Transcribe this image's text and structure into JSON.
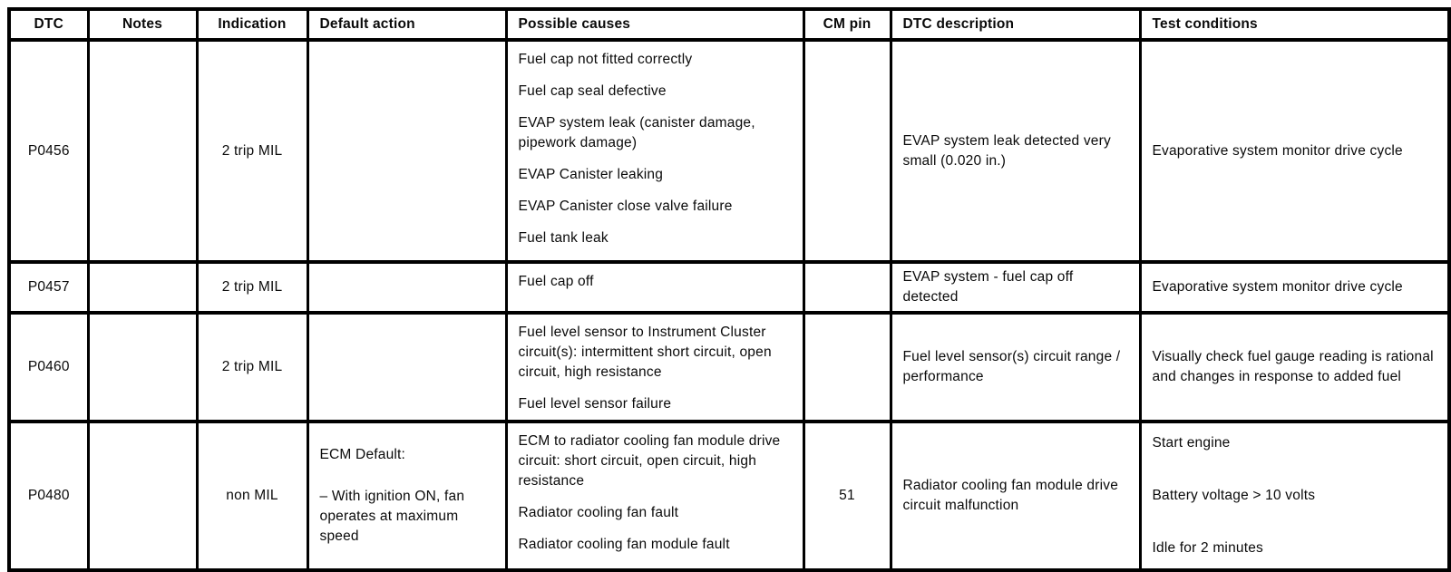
{
  "table": {
    "columns": [
      {
        "key": "dtc",
        "label": "DTC"
      },
      {
        "key": "notes",
        "label": "Notes"
      },
      {
        "key": "indication",
        "label": "Indication"
      },
      {
        "key": "default_action",
        "label": "Default action"
      },
      {
        "key": "possible_causes",
        "label": "Possible causes"
      },
      {
        "key": "cm_pin",
        "label": "CM pin"
      },
      {
        "key": "dtc_description",
        "label": "DTC description"
      },
      {
        "key": "test_conditions",
        "label": "Test conditions"
      }
    ],
    "rows": [
      {
        "dtc": [
          "P0456"
        ],
        "notes": [],
        "indication": [
          "2 trip MIL"
        ],
        "default_action": [],
        "possible_causes": [
          "Fuel cap not fitted correctly",
          "Fuel cap seal defective",
          "EVAP system leak (canister damage, pipework damage)",
          "EVAP Canister leaking",
          "EVAP Canister close valve failure",
          "Fuel tank leak"
        ],
        "cm_pin": [],
        "dtc_description": [
          "EVAP system leak detected very small (0.020 in.)"
        ],
        "test_conditions": [
          "Evaporative system monitor drive cycle"
        ]
      },
      {
        "dtc": [
          "P0457"
        ],
        "notes": [],
        "indication": [
          "2 trip MIL"
        ],
        "default_action": [],
        "possible_causes": [
          "Fuel cap off"
        ],
        "cm_pin": [],
        "dtc_description": [
          "EVAP system - fuel cap off detected"
        ],
        "test_conditions": [
          "Evaporative system monitor drive cycle"
        ]
      },
      {
        "dtc": [
          "P0460"
        ],
        "notes": [],
        "indication": [
          "2 trip MIL"
        ],
        "default_action": [],
        "possible_causes": [
          "Fuel level sensor to Instrument Cluster circuit(s): intermittent short circuit, open circuit, high resistance",
          "Fuel level sensor failure"
        ],
        "cm_pin": [],
        "dtc_description": [
          "Fuel level sensor(s) circuit range / performance"
        ],
        "test_conditions": [
          "Visually check fuel gauge reading is rational and changes in response to added fuel"
        ]
      },
      {
        "dtc": [
          "P0480"
        ],
        "notes": [],
        "indication": [
          "non MIL"
        ],
        "default_action": [
          "ECM Default:",
          "– With ignition ON, fan operates at maximum speed"
        ],
        "possible_causes": [
          "ECM to radiator cooling fan module drive circuit: short circuit, open circuit, high resistance",
          "Radiator cooling fan fault",
          "Radiator cooling fan module fault"
        ],
        "cm_pin": [
          "51"
        ],
        "dtc_description": [
          "Radiator cooling fan module drive circuit malfunction"
        ],
        "test_conditions": [
          "Start engine",
          "Battery voltage > 10 volts",
          "Idle for 2 minutes"
        ]
      }
    ]
  }
}
